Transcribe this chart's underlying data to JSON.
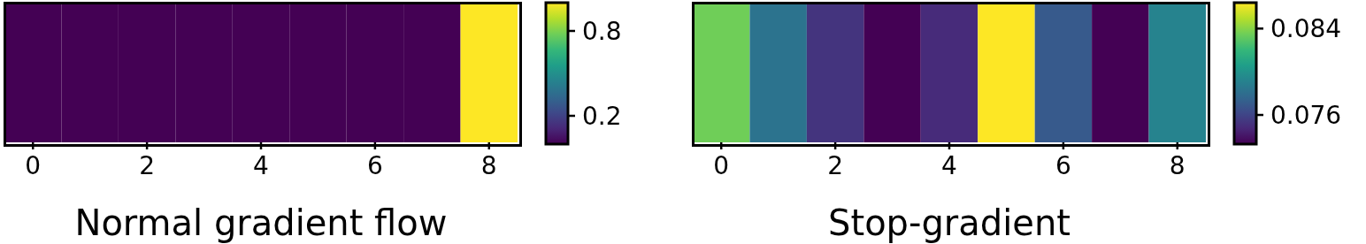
{
  "chart_data": [
    {
      "type": "heatmap",
      "xlabel": "Normal gradient flow",
      "categories": [
        "0",
        null,
        "2",
        null,
        "4",
        null,
        "6",
        null,
        "8"
      ],
      "y_categories": [
        null
      ],
      "cells": [
        [
          0,
          0,
          0,
          0,
          0,
          0,
          0,
          0,
          1
        ]
      ],
      "clim": [
        0,
        1
      ],
      "cticks": [
        0.2,
        0.8
      ],
      "tick_labels": "x"
    },
    {
      "type": "heatmap",
      "xlabel": "Stop-gradient",
      "categories": [
        "0",
        null,
        "2",
        null,
        "4",
        null,
        "6",
        null,
        "8"
      ],
      "y_categories": [
        null
      ],
      "cells": [
        [
          0.0835,
          0.0783,
          0.0753,
          0.0733,
          0.0749,
          0.0864,
          0.077,
          0.0733,
          0.0792
        ]
      ],
      "clim": [
        0.0733,
        0.0864
      ],
      "cticks": [
        0.076,
        0.084
      ],
      "tick_labels": "x"
    }
  ]
}
